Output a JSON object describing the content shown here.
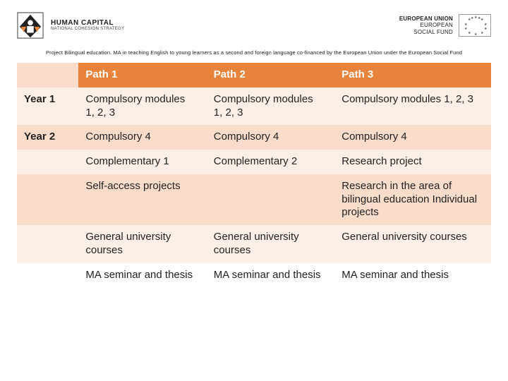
{
  "header": {
    "left_logo": {
      "line1": "HUMAN CAPITAL",
      "line2": "NATIONAL COHESION STRATEGY"
    },
    "right_logo": {
      "line1": "EUROPEAN UNION",
      "line2": "EUROPEAN",
      "line3": "SOCIAL FUND"
    }
  },
  "project_line": "Project Bilingual education. MA in teaching English to young learners as a second and foreign language  co-financed by the European Union under the European Social Fund",
  "table": {
    "columns": [
      "",
      "Path 1",
      "Path 2",
      "Path 3"
    ],
    "column_widths_pct": [
      13,
      27,
      27,
      33
    ],
    "header_bg": "#e8833c",
    "header_fg": "#ffffff",
    "stripe_light": "#fdefe6",
    "stripe_mid": "#f9dcc9",
    "rows": [
      {
        "label": "Year 1",
        "cells": [
          "Compulsory modules\n1, 2, 3",
          "Compulsory modules\n1, 2, 3",
          "Compulsory modules 1, 2, 3"
        ],
        "bg": "light"
      },
      {
        "label": "Year 2",
        "cells": [
          "Compulsory  4",
          "Compulsory  4",
          "Compulsory 4"
        ],
        "bg": "mid"
      },
      {
        "label": "",
        "cells": [
          "Complementary 1",
          "Complementary 2",
          "Research project"
        ],
        "bg": "light"
      },
      {
        "label": "",
        "cells": [
          "Self-access projects",
          "",
          "Research in the area of bilingual education Individual projects"
        ],
        "bg": "mid"
      },
      {
        "label": "",
        "cells": [
          "General university courses",
          "General university courses",
          "General university courses"
        ],
        "bg": "light"
      },
      {
        "label": "",
        "cells": [
          "MA seminar and thesis",
          "MA seminar and thesis",
          "MA seminar and thesis"
        ],
        "bg": "blank"
      }
    ]
  }
}
